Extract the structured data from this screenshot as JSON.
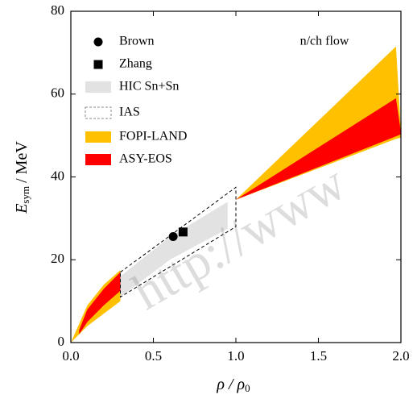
{
  "chart_data": {
    "type": "band",
    "annotation": "n/ch flow",
    "watermark": "http://www",
    "x_label": {
      "main": "ρ / ρ",
      "sub": "0"
    },
    "y_label": {
      "main": "E",
      "sub": "sym",
      "rest": "/ MeV"
    },
    "xlim": [
      0,
      2.0
    ],
    "xticks": [
      {
        "value": 0,
        "label": "0.0"
      },
      0.5,
      {
        "value": 1,
        "label": "1.0"
      },
      1.5,
      {
        "value": 2,
        "label": "2.0"
      }
    ],
    "ylim": [
      0,
      80
    ],
    "yticks": [
      0,
      20,
      40,
      60,
      80
    ],
    "series": [
      {
        "name": "Brown",
        "kind": "point",
        "marker": "circle",
        "color": "#000000",
        "x": [
          0.62
        ],
        "values": [
          25.6
        ]
      },
      {
        "name": "Zhang",
        "kind": "point",
        "marker": "square",
        "color": "#000000",
        "x": [
          0.68
        ],
        "values": [
          26.7
        ]
      },
      {
        "name": "HIC Sn+Sn",
        "kind": "band",
        "color": "#e2e2e2",
        "x": [
          0.3,
          0.6,
          0.95
        ],
        "upper": [
          16,
          25.5,
          34
        ],
        "lower": [
          11,
          20,
          27.5
        ]
      },
      {
        "name": "IAS",
        "kind": "band",
        "color": "none",
        "dashed": true,
        "x": [
          0.3,
          1.0
        ],
        "upper": [
          17,
          37.5
        ],
        "lower": [
          11,
          28
        ]
      },
      {
        "name": "FOPI-LAND",
        "kind": "band",
        "color": "#ffc000",
        "x": [
          0,
          0.1,
          0.2,
          0.3,
          null,
          1.0,
          1.97,
          2.0
        ],
        "upper": [
          0,
          9,
          14,
          17.5,
          null,
          34.5,
          71.5,
          51
        ],
        "lower": [
          0,
          4,
          7,
          10,
          null,
          34.5,
          49.2,
          49.5
        ]
      },
      {
        "name": "ASY-EOS",
        "kind": "band",
        "color": "#ff0000",
        "x": [
          0.05,
          0.1,
          0.2,
          0.3,
          null,
          1.0,
          1.97,
          2.0
        ],
        "upper": [
          3,
          8,
          13,
          17,
          null,
          34.5,
          59,
          50.8
        ],
        "lower": [
          2,
          5,
          9,
          12.5,
          null,
          34.5,
          49.8,
          50.3
        ]
      }
    ]
  }
}
